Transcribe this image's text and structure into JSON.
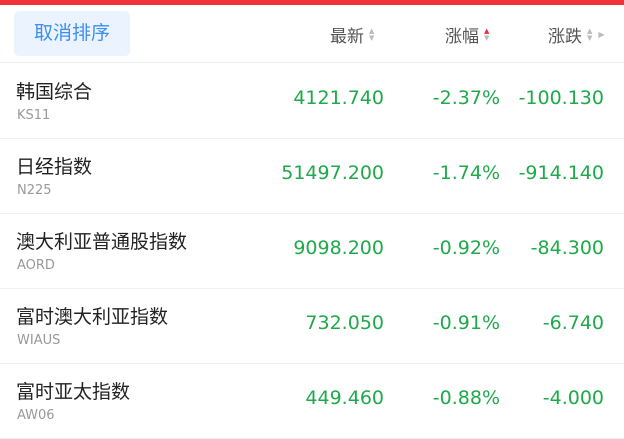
{
  "header": {
    "cancel_label": "取消排序",
    "columns": [
      {
        "label": "最新",
        "sort": "none"
      },
      {
        "label": "涨幅",
        "sort": "ascending"
      },
      {
        "label": "涨跌",
        "sort": "none"
      }
    ]
  },
  "colors": {
    "down": "#1eaa4a",
    "accent": "#3d8ef0",
    "sort_active": "#e8303a",
    "top_bar": "#f0323a"
  },
  "rows": [
    {
      "name": "韩国综合",
      "code": "KS11",
      "latest": "4121.740",
      "pct": "-2.37%",
      "change": "-100.130"
    },
    {
      "name": "日经指数",
      "code": "N225",
      "latest": "51497.200",
      "pct": "-1.74%",
      "change": "-914.140"
    },
    {
      "name": "澳大利亚普通股指数",
      "code": "AORD",
      "latest": "9098.200",
      "pct": "-0.92%",
      "change": "-84.300"
    },
    {
      "name": "富时澳大利亚指数",
      "code": "WIAUS",
      "latest": "732.050",
      "pct": "-0.91%",
      "change": "-6.740"
    },
    {
      "name": "富时亚太指数",
      "code": "AW06",
      "latest": "449.460",
      "pct": "-0.88%",
      "change": "-4.000"
    }
  ]
}
